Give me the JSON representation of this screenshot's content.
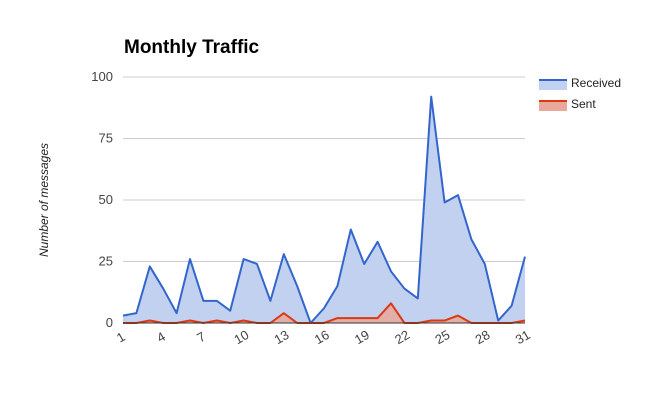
{
  "chart_data": {
    "type": "area",
    "title": "Monthly Traffic",
    "xlabel": "",
    "ylabel": "Number of messages",
    "x": [
      1,
      2,
      3,
      4,
      5,
      6,
      7,
      8,
      9,
      10,
      11,
      12,
      13,
      14,
      15,
      16,
      17,
      18,
      19,
      20,
      21,
      22,
      23,
      24,
      25,
      26,
      27,
      28,
      29,
      30,
      31
    ],
    "x_tick_labels": [
      "1",
      "4",
      "7",
      "10",
      "13",
      "16",
      "19",
      "22",
      "25",
      "28",
      "31"
    ],
    "ylim": [
      0,
      100
    ],
    "y_ticks": [
      0,
      25,
      50,
      75,
      100
    ],
    "grid": true,
    "legend_position": "right",
    "series": [
      {
        "name": "Received",
        "color": "#3366cc",
        "fill": "#c3d1f0",
        "values": [
          3,
          4,
          23,
          14,
          4,
          26,
          9,
          9,
          5,
          26,
          24,
          9,
          28,
          15,
          0,
          6,
          15,
          38,
          24,
          33,
          21,
          14,
          10,
          92,
          49,
          52,
          34,
          24,
          1,
          7,
          27
        ]
      },
      {
        "name": "Sent",
        "color": "#dc3912",
        "fill": "#e9a89b",
        "values": [
          0,
          0,
          1,
          0,
          0,
          1,
          0,
          1,
          0,
          1,
          0,
          0,
          4,
          0,
          0,
          0,
          2,
          2,
          2,
          2,
          8,
          0,
          0,
          1,
          1,
          3,
          0,
          0,
          0,
          0,
          1
        ]
      }
    ]
  }
}
